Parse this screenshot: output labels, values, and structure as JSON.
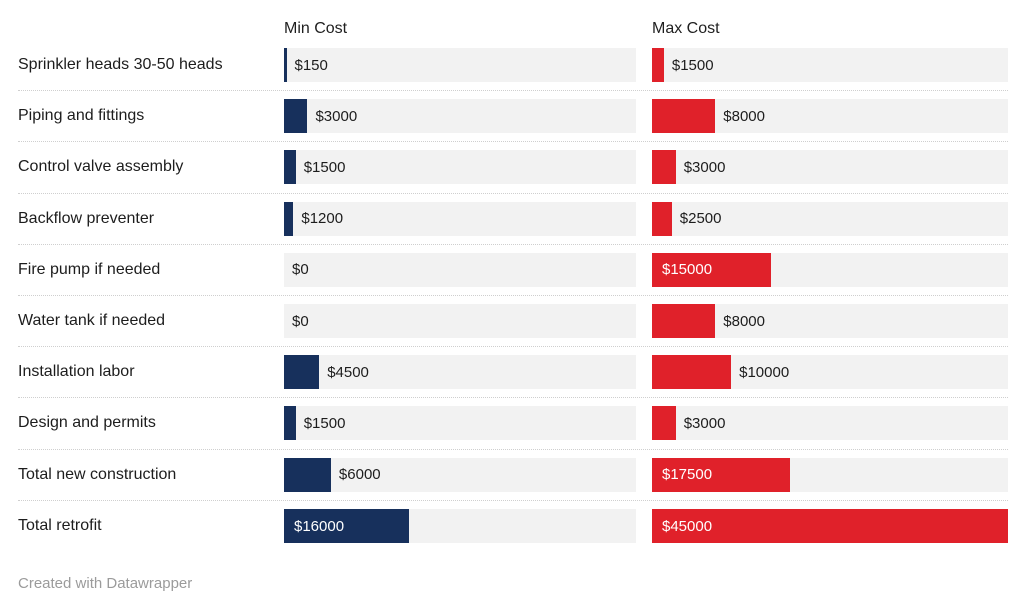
{
  "chart_data": {
    "type": "bar",
    "layout": "split-columns",
    "categories": [
      "Sprinkler heads 30-50 heads",
      "Piping and fittings",
      "Control valve assembly",
      "Backflow preventer",
      "Fire pump if needed",
      "Water tank if needed",
      "Installation labor",
      "Design and permits",
      "Total new construction",
      "Total retrofit"
    ],
    "series": [
      {
        "name": "Min Cost",
        "values": [
          150,
          3000,
          1500,
          1200,
          0,
          0,
          4500,
          1500,
          6000,
          16000
        ],
        "labels": [
          "$150",
          "$3000",
          "$1500",
          "$1200",
          "$0",
          "$0",
          "$4500",
          "$1500",
          "$6000",
          "$16000"
        ],
        "color": "#17305c"
      },
      {
        "name": "Max Cost",
        "values": [
          1500,
          8000,
          3000,
          2500,
          15000,
          8000,
          10000,
          3000,
          17500,
          45000
        ],
        "labels": [
          "$1500",
          "$8000",
          "$3000",
          "$2500",
          "$15000",
          "$8000",
          "$10000",
          "$3000",
          "$17500",
          "$45000"
        ],
        "color": "#e0212a"
      }
    ],
    "xlim": [
      0,
      45000
    ],
    "grid": false,
    "row_separator": "dotted",
    "value_labels": "inside-when-bar-wide-else-right"
  },
  "colors": {
    "min_bar": "#17305c",
    "max_bar": "#e0212a",
    "track_background": "#f2f2f2",
    "label_text": "#1d1d1d",
    "credit_text": "#9b9b9b"
  },
  "footer": {
    "credit": "Created with Datawrapper"
  }
}
